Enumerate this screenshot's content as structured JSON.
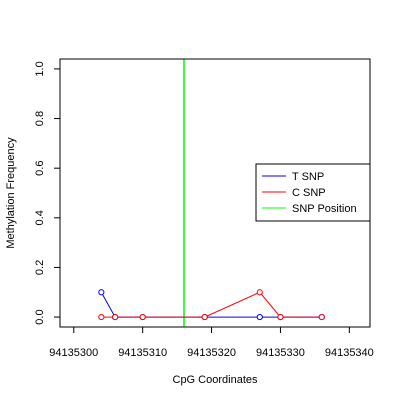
{
  "chart_data": {
    "type": "line",
    "xlabel": "CpG Coordinates",
    "ylabel": "Methylation Frequency",
    "xlim": [
      94135298,
      94135343
    ],
    "ylim": [
      -0.04,
      1.04
    ],
    "x_ticks": [
      {
        "value": 94135300,
        "label": "94135300"
      },
      {
        "value": 94135310,
        "label": "94135310"
      },
      {
        "value": 94135320,
        "label": "94135320"
      },
      {
        "value": 94135330,
        "label": "94135330"
      },
      {
        "value": 94135340,
        "label": "94135340"
      }
    ],
    "y_ticks": [
      {
        "value": 0.0,
        "label": "0.0"
      },
      {
        "value": 0.2,
        "label": "0.2"
      },
      {
        "value": 0.4,
        "label": "0.4"
      },
      {
        "value": 0.6,
        "label": "0.6"
      },
      {
        "value": 0.8,
        "label": "0.8"
      },
      {
        "value": 1.0,
        "label": "1.0"
      }
    ],
    "series": [
      {
        "name": "T SNP",
        "color": "#0000ff",
        "x": [
          94135304,
          94135306,
          94135310,
          94135319,
          94135327,
          94135330,
          94135336
        ],
        "y": [
          0.1,
          0.0,
          0.0,
          0.0,
          0.0,
          0.0,
          0.0
        ]
      },
      {
        "name": "C SNP",
        "color": "#ff0000",
        "x": [
          94135304,
          94135306,
          94135310,
          94135319,
          94135327,
          94135330,
          94135336
        ],
        "y": [
          0.0,
          0.0,
          0.0,
          0.0,
          0.1,
          0.0,
          0.0
        ]
      }
    ],
    "snp_position": {
      "name": "SNP Position",
      "color": "#00ff00",
      "x": 94135316
    },
    "legend": {
      "placement": "right",
      "entries": [
        {
          "label": "T SNP",
          "color": "#0000ff"
        },
        {
          "label": "C SNP",
          "color": "#ff0000"
        },
        {
          "label": "SNP Position",
          "color": "#00ff00"
        }
      ]
    },
    "grid": false
  }
}
